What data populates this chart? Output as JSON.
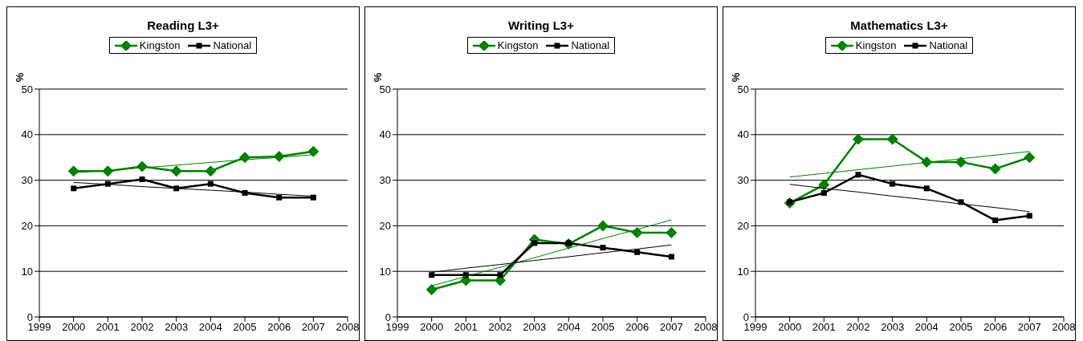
{
  "chart_data": [
    {
      "type": "line",
      "title": "Reading L3+",
      "ylabel": "%",
      "x": [
        2000,
        2001,
        2002,
        2003,
        2004,
        2005,
        2006,
        2007
      ],
      "xlim": [
        1999,
        2008
      ],
      "xticks": [
        1999,
        2000,
        2001,
        2002,
        2003,
        2004,
        2005,
        2006,
        2007,
        2008
      ],
      "ylim": [
        0,
        50
      ],
      "yticks": [
        0,
        10,
        20,
        30,
        40,
        50
      ],
      "grid": "y",
      "legend": "top",
      "series": [
        {
          "name": "Kingston",
          "color": "#008000",
          "marker": "diamond",
          "values": [
            32,
            32,
            33,
            32,
            32,
            35,
            35.2,
            36.3
          ]
        },
        {
          "name": "National",
          "color": "#000000",
          "marker": "square",
          "values": [
            28.2,
            29.2,
            30.2,
            28.2,
            29.2,
            27.2,
            26.2,
            26.2
          ]
        },
        {
          "color": "#008000",
          "marker": "none",
          "values": [
            31.6,
            32.2,
            32.7,
            33.3,
            33.9,
            34.5,
            35.0,
            35.6
          ]
        },
        {
          "color": "#000000",
          "marker": "none",
          "values": [
            29.5,
            29.1,
            28.6,
            28.2,
            27.8,
            27.4,
            26.9,
            26.5
          ]
        }
      ]
    },
    {
      "type": "line",
      "title": "Writing L3+",
      "ylabel": "%",
      "x": [
        2000,
        2001,
        2002,
        2003,
        2004,
        2005,
        2006,
        2007
      ],
      "xlim": [
        1999,
        2008
      ],
      "xticks": [
        1999,
        2000,
        2001,
        2002,
        2003,
        2004,
        2005,
        2006,
        2007,
        2008
      ],
      "ylim": [
        0,
        50
      ],
      "yticks": [
        0,
        10,
        20,
        30,
        40,
        50
      ],
      "grid": "y",
      "legend": "top",
      "series": [
        {
          "name": "Kingston",
          "color": "#008000",
          "marker": "diamond",
          "values": [
            6,
            8,
            8,
            17,
            16,
            20,
            18.5,
            18.5
          ]
        },
        {
          "name": "National",
          "color": "#000000",
          "marker": "square",
          "values": [
            9.2,
            9.2,
            9.2,
            16.2,
            16.2,
            15.2,
            14.2,
            13.2
          ]
        },
        {
          "color": "#008000",
          "marker": "none",
          "values": [
            6.8,
            8.9,
            10.9,
            13.0,
            15.1,
            17.2,
            19.2,
            21.3
          ]
        },
        {
          "color": "#000000",
          "marker": "none",
          "values": [
            9.8,
            10.7,
            11.5,
            12.4,
            13.2,
            14.1,
            14.9,
            15.8
          ]
        }
      ]
    },
    {
      "type": "line",
      "title": "Mathematics L3+",
      "ylabel": "%",
      "x": [
        2000,
        2001,
        2002,
        2003,
        2004,
        2005,
        2006,
        2007
      ],
      "xlim": [
        1999,
        2008
      ],
      "xticks": [
        1999,
        2000,
        2001,
        2002,
        2003,
        2004,
        2005,
        2006,
        2007,
        2008
      ],
      "ylim": [
        0,
        50
      ],
      "yticks": [
        0,
        10,
        20,
        30,
        40,
        50
      ],
      "grid": "y",
      "legend": "top",
      "series": [
        {
          "name": "Kingston",
          "color": "#008000",
          "marker": "diamond",
          "values": [
            25,
            29,
            39,
            39,
            34,
            34,
            32.5,
            35
          ]
        },
        {
          "name": "National",
          "color": "#000000",
          "marker": "square",
          "values": [
            25.2,
            27.2,
            31.2,
            29.2,
            28.2,
            25.2,
            21.2,
            22.2
          ]
        },
        {
          "color": "#008000",
          "marker": "none",
          "values": [
            30.7,
            31.5,
            32.3,
            33.1,
            33.9,
            34.7,
            35.5,
            36.3
          ]
        },
        {
          "color": "#000000",
          "marker": "none",
          "values": [
            29.1,
            28.2,
            27.4,
            26.5,
            25.7,
            24.8,
            24.0,
            23.1
          ]
        }
      ]
    }
  ]
}
